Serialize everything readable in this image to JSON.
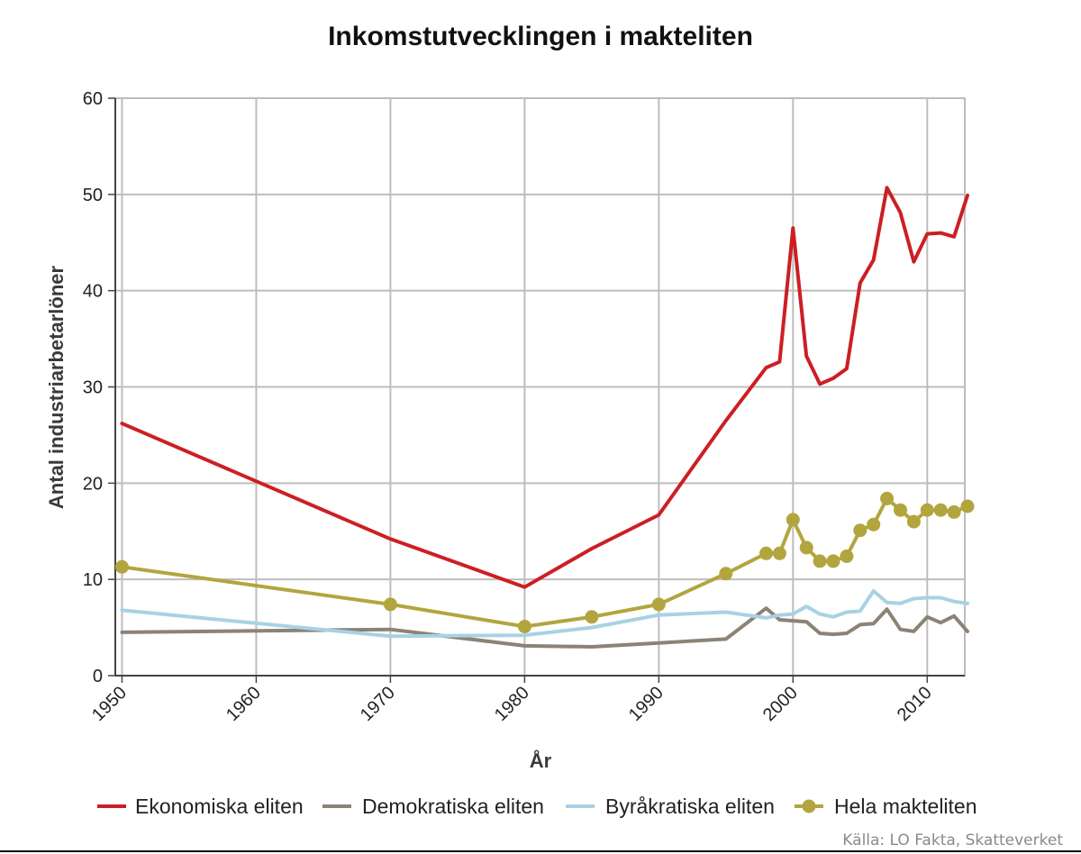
{
  "chart_data": {
    "type": "line",
    "title": "Inkomstutvecklingen i makteliten",
    "xlabel": "År",
    "ylabel": "Antal industriarbetarlöner",
    "xlim": [
      1949.5,
      2012.8
    ],
    "ylim": [
      0,
      60
    ],
    "x_ticks": [
      "1950",
      "1960",
      "1970",
      "1980",
      "1990",
      "2000",
      "2010"
    ],
    "y_ticks": [
      "0",
      "10",
      "20",
      "30",
      "40",
      "50",
      "60"
    ],
    "grid": true,
    "legend_position": "bottom",
    "source": "Källa: LO Fakta, Skatteverket",
    "series": [
      {
        "name": "Ekonomiska eliten",
        "color": "#cc1f24",
        "marker": "none",
        "points": [
          [
            1950,
            26.2
          ],
          [
            1970,
            14.2
          ],
          [
            1980,
            9.2
          ],
          [
            1985,
            13.2
          ],
          [
            1990,
            16.7
          ],
          [
            1995,
            26.5
          ],
          [
            1998,
            32.0
          ],
          [
            1999,
            32.6
          ],
          [
            2000,
            46.5
          ],
          [
            2001,
            33.2
          ],
          [
            2002,
            30.3
          ],
          [
            2003,
            30.9
          ],
          [
            2004,
            31.9
          ],
          [
            2005,
            40.8
          ],
          [
            2006,
            43.2
          ],
          [
            2007,
            50.7
          ],
          [
            2008,
            48.1
          ],
          [
            2009,
            43.0
          ],
          [
            2010,
            45.9
          ],
          [
            2011,
            46.0
          ],
          [
            2012,
            45.6
          ],
          [
            2013,
            49.9
          ]
        ]
      },
      {
        "name": "Demokratiska eliten",
        "color": "#8c8276",
        "marker": "none",
        "points": [
          [
            1950,
            4.5
          ],
          [
            1970,
            4.8
          ],
          [
            1980,
            3.1
          ],
          [
            1985,
            3.0
          ],
          [
            1990,
            3.4
          ],
          [
            1995,
            3.8
          ],
          [
            1998,
            7.0
          ],
          [
            1999,
            5.8
          ],
          [
            2000,
            5.7
          ],
          [
            2001,
            5.6
          ],
          [
            2002,
            4.4
          ],
          [
            2003,
            4.3
          ],
          [
            2004,
            4.4
          ],
          [
            2005,
            5.3
          ],
          [
            2006,
            5.4
          ],
          [
            2007,
            6.9
          ],
          [
            2008,
            4.8
          ],
          [
            2009,
            4.6
          ],
          [
            2010,
            6.1
          ],
          [
            2011,
            5.5
          ],
          [
            2012,
            6.2
          ],
          [
            2013,
            4.6
          ]
        ]
      },
      {
        "name": "Byråkratiska eliten",
        "color": "#a8d2e4",
        "marker": "none",
        "points": [
          [
            1950,
            6.8
          ],
          [
            1970,
            4.1
          ],
          [
            1980,
            4.2
          ],
          [
            1985,
            5.0
          ],
          [
            1990,
            6.3
          ],
          [
            1995,
            6.6
          ],
          [
            1998,
            6.0
          ],
          [
            1999,
            6.3
          ],
          [
            2000,
            6.4
          ],
          [
            2001,
            7.2
          ],
          [
            2002,
            6.4
          ],
          [
            2003,
            6.1
          ],
          [
            2004,
            6.6
          ],
          [
            2005,
            6.7
          ],
          [
            2006,
            8.8
          ],
          [
            2007,
            7.6
          ],
          [
            2008,
            7.5
          ],
          [
            2009,
            8.0
          ],
          [
            2010,
            8.1
          ],
          [
            2011,
            8.1
          ],
          [
            2012,
            7.7
          ],
          [
            2013,
            7.5
          ]
        ]
      },
      {
        "name": "Hela makteliten",
        "color": "#b3a53e",
        "marker": "circle",
        "points": [
          [
            1950,
            11.3
          ],
          [
            1970,
            7.4
          ],
          [
            1980,
            5.1
          ],
          [
            1985,
            6.1
          ],
          [
            1990,
            7.4
          ],
          [
            1995,
            10.6
          ],
          [
            1998,
            12.7
          ],
          [
            1999,
            12.7
          ],
          [
            2000,
            16.2
          ],
          [
            2001,
            13.3
          ],
          [
            2002,
            11.9
          ],
          [
            2003,
            11.9
          ],
          [
            2004,
            12.4
          ],
          [
            2005,
            15.1
          ],
          [
            2006,
            15.7
          ],
          [
            2007,
            18.4
          ],
          [
            2008,
            17.2
          ],
          [
            2009,
            16.0
          ],
          [
            2010,
            17.2
          ],
          [
            2011,
            17.2
          ],
          [
            2012,
            17.0
          ],
          [
            2013,
            17.6
          ]
        ]
      }
    ]
  }
}
